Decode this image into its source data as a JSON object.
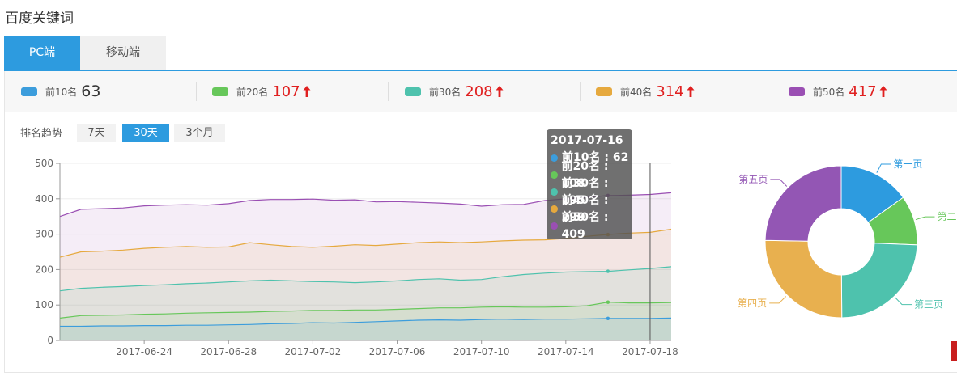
{
  "page": {
    "title": "百度关键词"
  },
  "tabs": [
    {
      "label": "PC端",
      "active": true
    },
    {
      "label": "移动端",
      "active": false
    }
  ],
  "stats": [
    {
      "label": "前10名",
      "value": "63",
      "trend": "none",
      "color": "#3c9ddc"
    },
    {
      "label": "前20名",
      "value": "107",
      "trend": "up",
      "color": "#67c75a"
    },
    {
      "label": "前30名",
      "value": "208",
      "trend": "up",
      "color": "#4ec2ad"
    },
    {
      "label": "前40名",
      "value": "314",
      "trend": "up",
      "color": "#e6a93e"
    },
    {
      "label": "前50名",
      "value": "417",
      "trend": "up",
      "color": "#9a4fb3"
    }
  ],
  "trend": {
    "label": "排名趋势",
    "ranges": [
      {
        "label": "7天",
        "active": false
      },
      {
        "label": "30天",
        "active": true
      },
      {
        "label": "3个月",
        "active": false
      }
    ]
  },
  "tooltip": {
    "date": "2017-07-16",
    "rows": [
      {
        "text": "前10名 : 62",
        "color": "#3c9ddc"
      },
      {
        "text": "前20名 : 108",
        "color": "#67c75a"
      },
      {
        "text": "前30名 : 195",
        "color": "#4ec2ad"
      },
      {
        "text": "前40名 : 299",
        "color": "#e6a93e"
      },
      {
        "text": "前50名 : 409",
        "color": "#9a4fb3"
      }
    ]
  },
  "chart_data": [
    {
      "type": "area",
      "title": "",
      "xlabel": "",
      "ylabel": "",
      "ylim": [
        0,
        500
      ],
      "yticks": [
        0,
        100,
        200,
        300,
        400,
        500
      ],
      "x": [
        "2017-06-20",
        "2017-06-21",
        "2017-06-22",
        "2017-06-23",
        "2017-06-24",
        "2017-06-25",
        "2017-06-26",
        "2017-06-27",
        "2017-06-28",
        "2017-06-29",
        "2017-06-30",
        "2017-07-01",
        "2017-07-02",
        "2017-07-03",
        "2017-07-04",
        "2017-07-05",
        "2017-07-06",
        "2017-07-07",
        "2017-07-08",
        "2017-07-09",
        "2017-07-10",
        "2017-07-11",
        "2017-07-12",
        "2017-07-13",
        "2017-07-14",
        "2017-07-15",
        "2017-07-16",
        "2017-07-17",
        "2017-07-18",
        "2017-07-19"
      ],
      "xticks": [
        "2017-06-24",
        "2017-06-28",
        "2017-07-02",
        "2017-07-06",
        "2017-07-10",
        "2017-07-14",
        "2017-07-18"
      ],
      "highlight_x": "2017-07-16",
      "grid": true,
      "series": [
        {
          "name": "前10名",
          "color": "#3c9ddc",
          "values": [
            40,
            40,
            41,
            41,
            42,
            42,
            43,
            43,
            44,
            45,
            47,
            48,
            50,
            49,
            51,
            53,
            55,
            57,
            58,
            57,
            59,
            60,
            59,
            60,
            60,
            61,
            62,
            62,
            62,
            63
          ]
        },
        {
          "name": "前20名",
          "color": "#67c75a",
          "values": [
            63,
            70,
            71,
            72,
            74,
            75,
            77,
            78,
            79,
            80,
            82,
            83,
            85,
            85,
            86,
            86,
            88,
            90,
            92,
            92,
            94,
            95,
            94,
            94,
            95,
            98,
            108,
            106,
            106,
            107
          ]
        },
        {
          "name": "前30名",
          "color": "#4ec2ad",
          "values": [
            140,
            147,
            150,
            152,
            155,
            157,
            160,
            162,
            165,
            168,
            170,
            168,
            166,
            165,
            163,
            165,
            168,
            172,
            174,
            170,
            172,
            180,
            186,
            190,
            193,
            194,
            195,
            199,
            203,
            208
          ]
        },
        {
          "name": "前40名",
          "color": "#e6a93e",
          "values": [
            235,
            250,
            252,
            255,
            260,
            263,
            265,
            263,
            264,
            276,
            270,
            265,
            263,
            266,
            270,
            268,
            272,
            276,
            278,
            276,
            278,
            281,
            283,
            284,
            288,
            294,
            299,
            303,
            305,
            314
          ]
        },
        {
          "name": "前50名",
          "color": "#9a4fb3",
          "values": [
            350,
            370,
            372,
            374,
            380,
            382,
            383,
            382,
            386,
            395,
            398,
            398,
            399,
            396,
            397,
            391,
            392,
            390,
            388,
            385,
            379,
            383,
            384,
            395,
            400,
            404,
            409,
            410,
            412,
            417
          ]
        }
      ]
    },
    {
      "type": "pie",
      "title": "",
      "labels": [
        "第一页",
        "第二页",
        "第三页",
        "第四页",
        "第五页"
      ],
      "values": [
        63,
        44,
        101,
        106,
        103
      ],
      "colors": [
        "#2d9bdf",
        "#67c75a",
        "#4ec2ad",
        "#e8b04f",
        "#9356b4"
      ],
      "donut": true
    }
  ]
}
